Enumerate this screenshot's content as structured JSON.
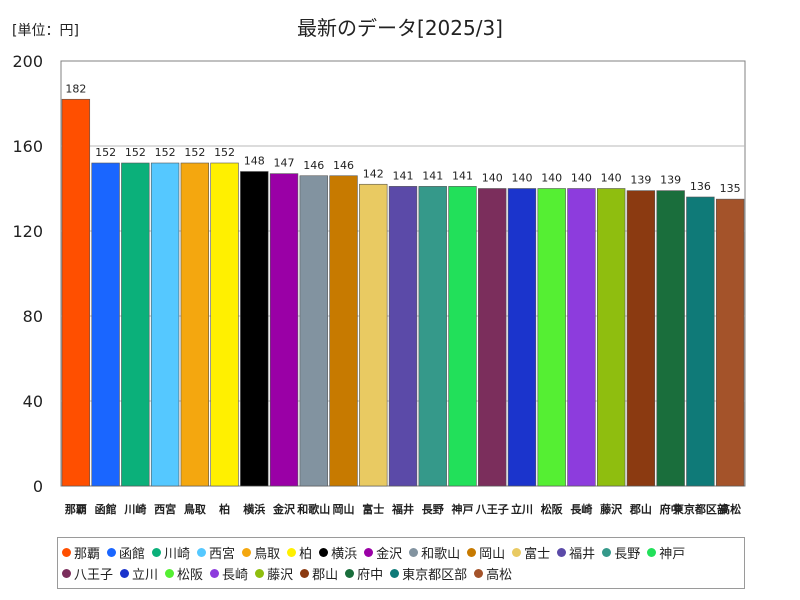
{
  "unit_label": "[単位：円]",
  "chart_data": {
    "type": "bar",
    "title": "最新のデータ[2025/3]",
    "categories": [
      "那覇",
      "函館",
      "川崎",
      "西宮",
      "鳥取",
      "柏",
      "横浜",
      "金沢",
      "和歌山",
      "岡山",
      "富士",
      "福井",
      "長野",
      "神戸",
      "八王子",
      "立川",
      "松阪",
      "長崎",
      "藤沢",
      "郡山",
      "府中",
      "東京都区部",
      "高松"
    ],
    "values": [
      182,
      152,
      152,
      152,
      152,
      152,
      148,
      147,
      146,
      146,
      142,
      141,
      141,
      141,
      140,
      140,
      140,
      140,
      140,
      139,
      139,
      136,
      135
    ],
    "colors": [
      "#ff4f00",
      "#1a66ff",
      "#0bb07a",
      "#55c8ff",
      "#f4a70f",
      "#fff000",
      "#000000",
      "#9a00a6",
      "#8293a0",
      "#c77a00",
      "#e9ca62",
      "#5b4aa8",
      "#35998a",
      "#22e05a",
      "#7b2e5c",
      "#1b34cc",
      "#55ef33",
      "#8d3cdd",
      "#8fbe0f",
      "#8b3a11",
      "#1a6e3c",
      "#0f7a78",
      "#a4532a"
    ],
    "ylim": [
      0,
      200
    ],
    "yticks": [
      0,
      40,
      80,
      120,
      160,
      200
    ],
    "grid": true,
    "legend_position": "bottom"
  }
}
